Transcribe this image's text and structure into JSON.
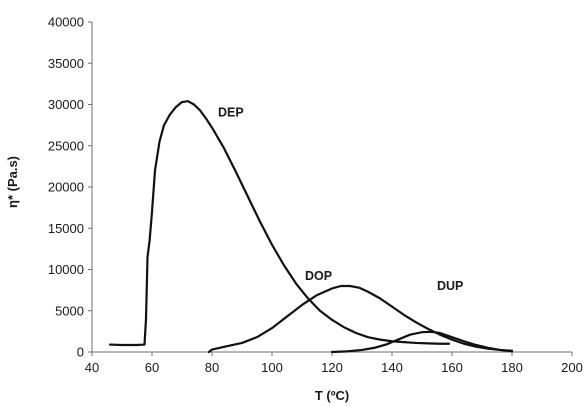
{
  "chart_data": {
    "type": "line",
    "title": "",
    "xlabel": "T (ºC)",
    "ylabel": "η* (Pa.s)",
    "xlim": [
      40,
      200
    ],
    "ylim": [
      0,
      40000
    ],
    "x_ticks": [
      40,
      60,
      80,
      100,
      120,
      140,
      160,
      180,
      200
    ],
    "y_ticks": [
      0,
      5000,
      10000,
      15000,
      20000,
      25000,
      30000,
      35000,
      40000
    ],
    "grid": false,
    "legend": "none",
    "line_color": "#111111",
    "series": [
      {
        "name": "DEP",
        "x": [
          46,
          50,
          55,
          57.5,
          58,
          58.5,
          59.2,
          60,
          61,
          62.5,
          64,
          66,
          68,
          70,
          72,
          74,
          76,
          78,
          80,
          84,
          88,
          92,
          96,
          100,
          104,
          108,
          112,
          116,
          120,
          124,
          128,
          132,
          136,
          140,
          144,
          148,
          152,
          156,
          159
        ],
        "y": [
          900,
          850,
          850,
          900,
          4000,
          11500,
          13500,
          17000,
          22000,
          25500,
          27500,
          28800,
          29700,
          30300,
          30400,
          30000,
          29300,
          28300,
          27200,
          24700,
          21800,
          18800,
          15800,
          13000,
          10500,
          8300,
          6500,
          5000,
          3900,
          3000,
          2300,
          1800,
          1500,
          1300,
          1200,
          1100,
          1050,
          1000,
          1000
        ]
      },
      {
        "name": "DOP",
        "x": [
          79,
          80,
          85,
          90,
          95,
          100,
          105,
          110,
          115,
          120,
          123,
          126,
          129,
          132,
          136,
          140,
          144,
          148,
          152,
          156,
          160,
          164,
          168,
          172,
          176,
          180
        ],
        "y": [
          0,
          300,
          700,
          1100,
          1800,
          2900,
          4300,
          5700,
          6900,
          7700,
          8000,
          8000,
          7800,
          7300,
          6500,
          5500,
          4500,
          3600,
          2800,
          2100,
          1500,
          1000,
          650,
          400,
          250,
          150
        ]
      },
      {
        "name": "DUP",
        "x": [
          120,
          125,
          130,
          134,
          138,
          142,
          146,
          150,
          153,
          156,
          160,
          164,
          168,
          172,
          176,
          180
        ],
        "y": [
          0,
          80,
          250,
          500,
          900,
          1500,
          2100,
          2400,
          2450,
          2300,
          1800,
          1300,
          850,
          500,
          250,
          100
        ]
      }
    ]
  }
}
